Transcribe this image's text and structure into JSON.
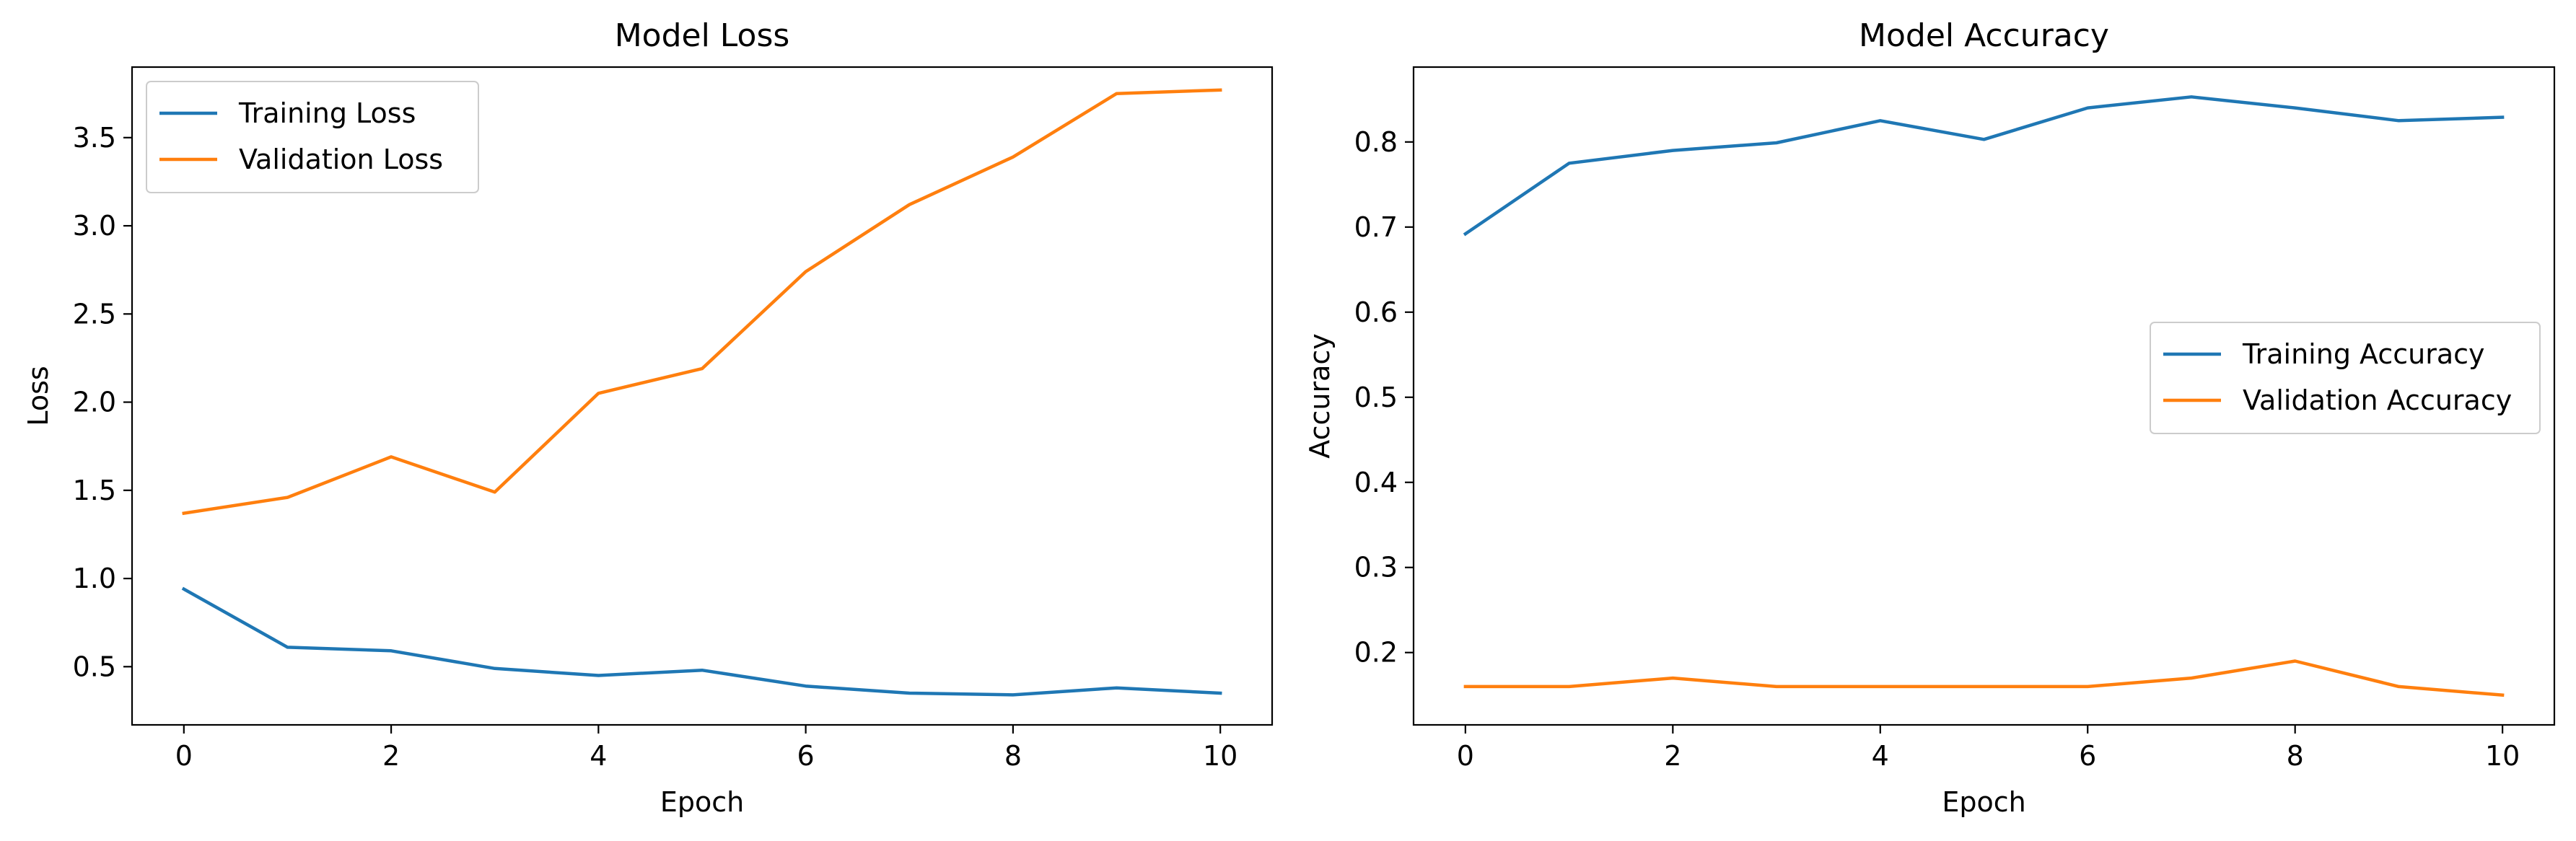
{
  "chart_data": [
    {
      "type": "line",
      "title": "Model Loss",
      "xlabel": "Epoch",
      "ylabel": "Loss",
      "x": [
        0,
        1,
        2,
        3,
        4,
        5,
        6,
        7,
        8,
        9,
        10
      ],
      "xlim": [
        -0.5,
        10.5
      ],
      "ylim": [
        0.17,
        3.9
      ],
      "xticks": [
        0,
        2,
        4,
        6,
        8,
        10
      ],
      "yticks": [
        0.5,
        1.0,
        1.5,
        2.0,
        2.5,
        3.0,
        3.5
      ],
      "ytick_labels": [
        "0.5",
        "1.0",
        "1.5",
        "2.0",
        "2.5",
        "3.0",
        "3.5"
      ],
      "grid": false,
      "legend_position": "upper-left",
      "series": [
        {
          "name": "Training Loss",
          "color": "#1f77b4",
          "values": [
            0.94,
            0.61,
            0.59,
            0.49,
            0.45,
            0.48,
            0.39,
            0.35,
            0.34,
            0.38,
            0.35
          ]
        },
        {
          "name": "Validation Loss",
          "color": "#ff7f0e",
          "values": [
            1.37,
            1.46,
            1.69,
            1.49,
            2.05,
            2.19,
            2.74,
            3.12,
            3.39,
            3.75,
            3.77
          ]
        }
      ]
    },
    {
      "type": "line",
      "title": "Model Accuracy",
      "xlabel": "Epoch",
      "ylabel": "Accuracy",
      "x": [
        0,
        1,
        2,
        3,
        4,
        5,
        6,
        7,
        8,
        9,
        10
      ],
      "xlim": [
        -0.5,
        10.5
      ],
      "ylim": [
        0.115,
        0.888
      ],
      "xticks": [
        0,
        2,
        4,
        6,
        8,
        10
      ],
      "yticks": [
        0.2,
        0.3,
        0.4,
        0.5,
        0.6,
        0.7,
        0.8
      ],
      "ytick_labels": [
        "0.2",
        "0.3",
        "0.4",
        "0.5",
        "0.6",
        "0.7",
        "0.8"
      ],
      "grid": false,
      "legend_position": "center-right",
      "series": [
        {
          "name": "Training Accuracy",
          "color": "#1f77b4",
          "values": [
            0.692,
            0.775,
            0.79,
            0.799,
            0.825,
            0.803,
            0.84,
            0.853,
            0.84,
            0.825,
            0.829
          ]
        },
        {
          "name": "Validation Accuracy",
          "color": "#ff7f0e",
          "values": [
            0.16,
            0.16,
            0.17,
            0.16,
            0.16,
            0.16,
            0.16,
            0.17,
            0.19,
            0.16,
            0.15
          ]
        }
      ]
    }
  ]
}
